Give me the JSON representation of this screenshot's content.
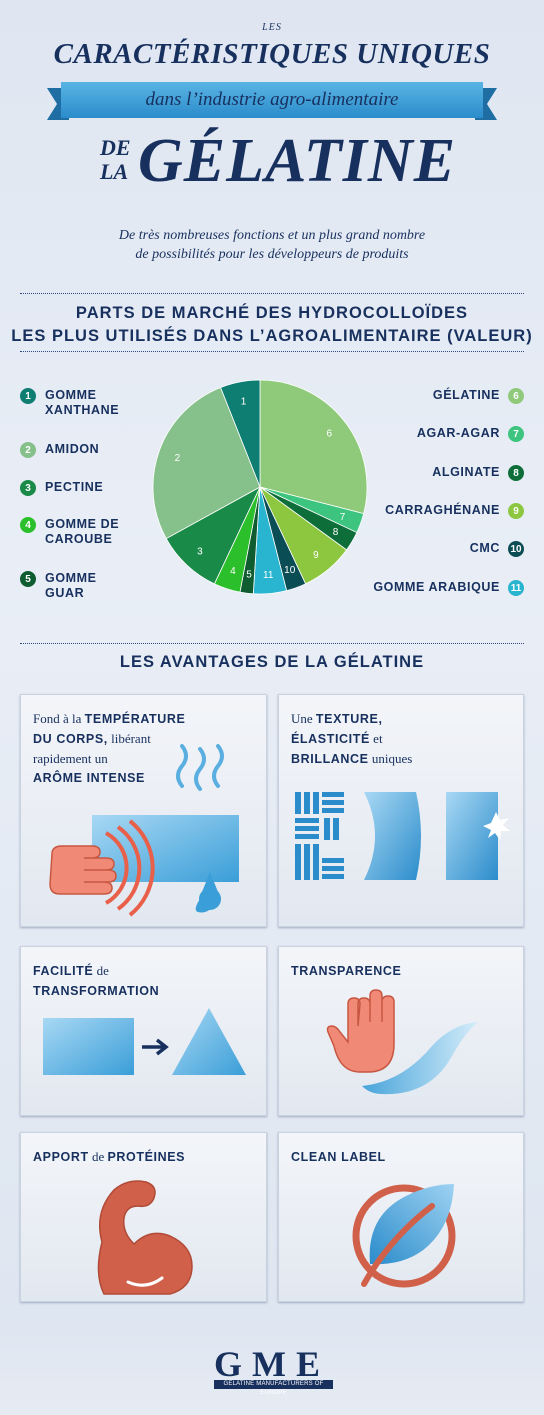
{
  "header": {
    "les": "LES",
    "title_line1": "CARACTÉRISTIQUES UNIQUES",
    "ribbon": "dans l’industrie agro-alimentaire",
    "de": "DE",
    "la": "LA",
    "title_main": "GÉLATINE",
    "intro_line1": "De très nombreuses fonctions et un plus grand nombre",
    "intro_line2": "de possibilités pour les développeurs de produits"
  },
  "market": {
    "title_line1": "PARTS DE MARCHÉ DES HYDROCOLLOÏDES",
    "title_line2": "LES PLUS UTILISÉS DANS L’AGROALIMENTAIRE (VALEUR)",
    "legend_left": [
      {
        "n": "1",
        "label1": "GOMME",
        "label2": "XANTHANE",
        "color": "#0e7d72"
      },
      {
        "n": "2",
        "label1": "AMIDON",
        "label2": "",
        "color": "#86c08a"
      },
      {
        "n": "3",
        "label1": "PECTINE",
        "label2": "",
        "color": "#1a8a48"
      },
      {
        "n": "4",
        "label1": "GOMME DE",
        "label2": "CAROUBE",
        "color": "#2bbf2b"
      },
      {
        "n": "5",
        "label1": "GOMME",
        "label2": "GUAR",
        "color": "#0f5c30"
      }
    ],
    "legend_right": [
      {
        "n": "6",
        "label": "GÉLATINE",
        "color": "#8fc97a"
      },
      {
        "n": "7",
        "label": "AGAR-AGAR",
        "color": "#3dc47e"
      },
      {
        "n": "8",
        "label": "ALGINATE",
        "color": "#0d6e3a"
      },
      {
        "n": "9",
        "label": "CARRAGHÉNANE",
        "color": "#8dc63f"
      },
      {
        "n": "10",
        "label": "CMC",
        "color": "#0b4d55"
      },
      {
        "n": "11",
        "label": "GOMME ARABIQUE",
        "color": "#29b5cf"
      }
    ]
  },
  "chart_data": {
    "type": "pie",
    "title": "PARTS DE MARCHÉ DES HYDROCOLLOÏDES LES PLUS UTILISÉS DANS L’AGROALIMENTAIRE (VALEUR)",
    "slices": [
      {
        "label": "6",
        "name": "GÉLATINE",
        "value": 29,
        "color": "#8fc97a"
      },
      {
        "label": "7",
        "name": "AGAR-AGAR",
        "value": 3,
        "color": "#3dc47e"
      },
      {
        "label": "8",
        "name": "ALGINATE",
        "value": 3,
        "color": "#0d6e3a"
      },
      {
        "label": "9",
        "name": "CARRAGHÉNANE",
        "value": 8,
        "color": "#8dc63f"
      },
      {
        "label": "10",
        "name": "CMC",
        "value": 3,
        "color": "#0b4d55"
      },
      {
        "label": "11",
        "name": "GOMME ARABIQUE",
        "value": 5,
        "color": "#29b5cf"
      },
      {
        "label": "5",
        "name": "GOMME GUAR",
        "value": 2,
        "color": "#0f5c30"
      },
      {
        "label": "4",
        "name": "GOMME DE CAROUBE",
        "value": 4,
        "color": "#2bbf2b"
      },
      {
        "label": "3",
        "name": "PECTINE",
        "value": 10,
        "color": "#1a8a48"
      },
      {
        "label": "2",
        "name": "AMIDON",
        "value": 27,
        "color": "#86c08a"
      },
      {
        "label": "1",
        "name": "GOMME XANTHANE",
        "value": 6,
        "color": "#0e7d72"
      }
    ]
  },
  "advantages": {
    "title": "LES AVANTAGES DE LA GÉLATINE",
    "card1": {
      "a": "Fond à la ",
      "b": "TEMPÉRATURE",
      "c": "DU CORPS,",
      "d": " libérant",
      "e": "rapidement un",
      "f": "ARÔME INTENSE"
    },
    "card2": {
      "a": "Une ",
      "b": "TEXTURE,",
      "c": "ÉLASTICITÉ",
      "d": " et",
      "e": "BRILLANCE",
      "f": " uniques"
    },
    "card3": {
      "a": "FACILITÉ",
      "b": " de",
      "c": "TRANSFORMATION"
    },
    "card4": {
      "a": "TRANSPARENCE"
    },
    "card5": {
      "a": "APPORT",
      "b": " de ",
      "c": "PROTÉINES"
    },
    "card6": {
      "a": "CLEAN LABEL"
    }
  },
  "footer": {
    "logo": "GME",
    "sub": "GELATINE MANUFACTURERS OF EUROPE"
  },
  "colors": {
    "navy": "#17305e",
    "ribbon": "#3b9fd6",
    "accent_red": "#e8604a",
    "accent_blue": "#3aa0dc"
  }
}
